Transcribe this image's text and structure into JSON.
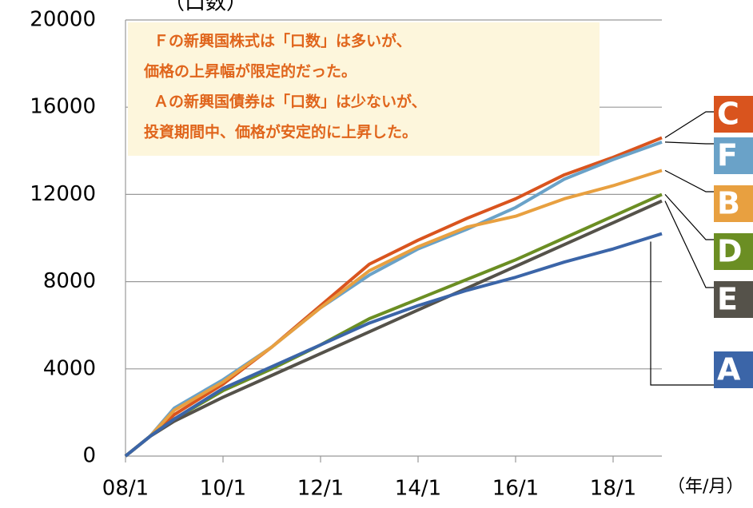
{
  "chart_data": {
    "type": "line",
    "y_label": "（口数）",
    "x_label": "（年/月）",
    "annotation": [
      "Ｆの新興国株式は「口数」は多いが、",
      "価格の上昇幅が限定的だった。",
      "Ａの新興国債券は「口数」は少ないが、",
      "投資期間中、価格が安定的に上昇した。"
    ],
    "x": [
      2008,
      2008.5,
      2009,
      2010,
      2011,
      2012,
      2013,
      2014,
      2015,
      2016,
      2017,
      2018,
      2019
    ],
    "xlim": [
      2008,
      2019
    ],
    "xticks": [
      {
        "value": 2008,
        "label": "08/1"
      },
      {
        "value": 2010,
        "label": "10/1"
      },
      {
        "value": 2012,
        "label": "12/1"
      },
      {
        "value": 2014,
        "label": "14/1"
      },
      {
        "value": 2016,
        "label": "16/1"
      },
      {
        "value": 2018,
        "label": "18/1"
      }
    ],
    "ylim": [
      0,
      20000
    ],
    "yticks": [
      0,
      4000,
      8000,
      12000,
      16000,
      20000
    ],
    "grid": true,
    "series": [
      {
        "name": "C",
        "color": "#d9541e",
        "values": [
          0,
          900,
          1900,
          3300,
          5000,
          6900,
          8800,
          9900,
          10900,
          11800,
          12900,
          13700,
          14600
        ]
      },
      {
        "name": "F",
        "color": "#6aa2c8",
        "values": [
          0,
          900,
          2200,
          3500,
          5000,
          6800,
          8300,
          9500,
          10400,
          11400,
          12700,
          13600,
          14400
        ]
      },
      {
        "name": "B",
        "color": "#e8a040",
        "values": [
          0,
          900,
          2100,
          3400,
          5000,
          6800,
          8500,
          9600,
          10500,
          11000,
          11800,
          12400,
          13100
        ]
      },
      {
        "name": "D",
        "color": "#6b8e23",
        "values": [
          0,
          900,
          1700,
          3000,
          4000,
          5100,
          6300,
          7200,
          8100,
          9000,
          10000,
          11000,
          12000
        ]
      },
      {
        "name": "E",
        "color": "#55524a",
        "values": [
          0,
          900,
          1600,
          2700,
          3700,
          4700,
          5700,
          6700,
          7700,
          8700,
          9700,
          10700,
          11700
        ]
      },
      {
        "name": "A",
        "color": "#3b65a8",
        "values": [
          0,
          900,
          1700,
          3100,
          4100,
          5100,
          6100,
          6900,
          7600,
          8200,
          8900,
          9500,
          10200
        ]
      }
    ]
  }
}
